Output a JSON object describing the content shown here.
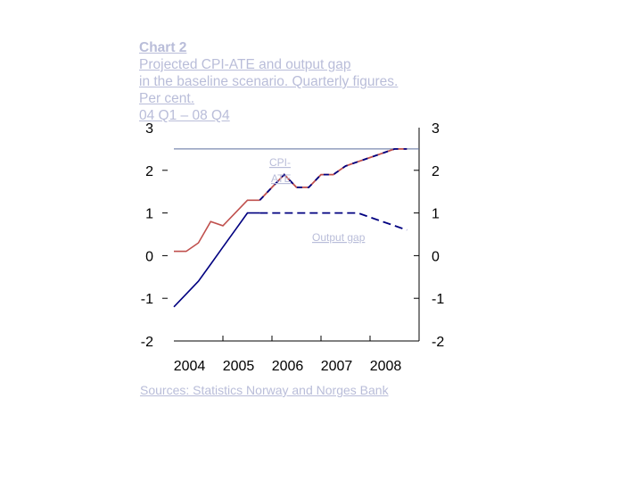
{
  "title": {
    "prefix": "Chart 2",
    "line1": "Projected CPI-ATE and output gap",
    "line2": "in the baseline scenario. Quarterly figures.",
    "line3": "Per cent.",
    "line4": "04 Q1 – 08 Q4"
  },
  "source": "Sources: Statistics Norway and Norges Bank",
  "chart_data": {
    "type": "line",
    "ylim": [
      -2,
      3
    ],
    "xlim": [
      2004.0,
      2009.0
    ],
    "y_ticks": [
      "3",
      "2",
      "1",
      "0",
      "-1",
      "-2"
    ],
    "y_tick_values": [
      3,
      2,
      1,
      0,
      -1,
      -2
    ],
    "x_ticks": [
      "2004",
      "2005",
      "2006",
      "2007",
      "2008"
    ],
    "annotations": [
      "CPI-ATE",
      "Output gap"
    ],
    "colors": {
      "cpi": "#c0504d",
      "cpi_dash": "#000080",
      "gap": "#000080",
      "refline": "#5a6e9e"
    },
    "series": [
      {
        "name": "CPI-ATE",
        "x": [
          2004.0,
          2004.25,
          2004.5,
          2004.75,
          2005.0,
          2005.25,
          2005.5,
          2005.75,
          2006.0,
          2006.25,
          2006.5,
          2006.75,
          2007.0,
          2007.25,
          2007.5,
          2007.75,
          2008.0,
          2008.25,
          2008.5,
          2008.75
        ],
        "values": [
          0.1,
          0.1,
          0.3,
          0.8,
          0.7,
          1.0,
          1.3,
          1.3,
          1.6,
          1.9,
          1.6,
          1.6,
          1.9,
          1.9,
          2.1,
          2.2,
          2.3,
          2.4,
          2.5,
          2.5
        ]
      },
      {
        "name": "Output gap",
        "x": [
          2004.0,
          2004.25,
          2004.5,
          2004.75,
          2005.0,
          2005.25,
          2005.5,
          2005.75,
          2006.0,
          2006.25,
          2006.5,
          2006.75,
          2007.0,
          2007.25,
          2007.5,
          2007.75,
          2008.0,
          2008.25,
          2008.5,
          2008.75
        ],
        "values": [
          -1.2,
          -0.9,
          -0.6,
          -0.2,
          0.2,
          0.6,
          1.0,
          1.0,
          1.0,
          1.0,
          1.0,
          1.0,
          1.0,
          1.0,
          1.0,
          1.0,
          0.9,
          0.8,
          0.7,
          0.6
        ]
      }
    ],
    "reference_line": 2.5,
    "projection_start": 2005.75
  }
}
